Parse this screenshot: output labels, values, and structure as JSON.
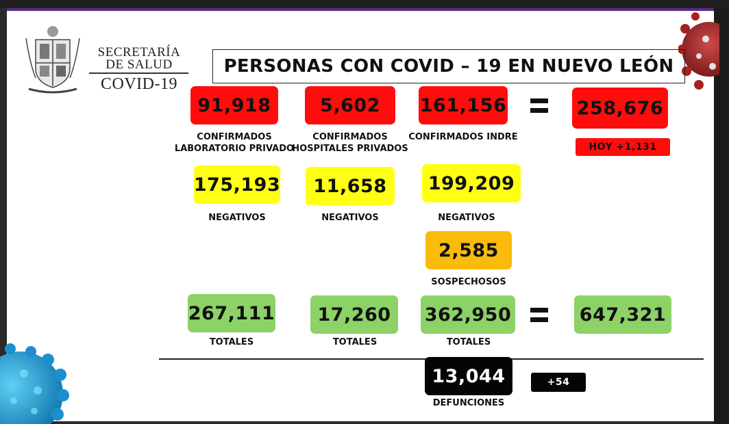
{
  "header": {
    "logo_line1": "SECRETARÍA",
    "logo_line2": "DE SALUD",
    "logo_line3": "COVID-19",
    "title": "PERSONAS CON COVID – 19 EN NUEVO LEÓN"
  },
  "confirmed": {
    "lab_privado": {
      "value": "91,918",
      "label_line1": "CONFIRMADOS",
      "label_line2": "LABORATORIO PRIVADO"
    },
    "hospitales": {
      "value": "5,602",
      "label_line1": "CONFIRMADOS",
      "label_line2": "HOSPITALES PRIVADOS"
    },
    "indre": {
      "value": "161,156",
      "label": "CONFIRMADOS INDRE"
    },
    "total": {
      "value": "258,676",
      "today": "HOY +1,131"
    }
  },
  "negatives": {
    "lab_privado": {
      "value": "175,193",
      "label": "NEGATIVOS"
    },
    "hospitales": {
      "value": "11,658",
      "label": "NEGATIVOS"
    },
    "indre": {
      "value": "199,209",
      "label": "NEGATIVOS"
    }
  },
  "suspects": {
    "value": "2,585",
    "label": "SOSPECHOSOS"
  },
  "totals": {
    "lab_privado": {
      "value": "267,111",
      "label": "TOTALES"
    },
    "hospitales": {
      "value": "17,260",
      "label": "TOTALES"
    },
    "indre": {
      "value": "362,950",
      "label": "TOTALES"
    },
    "grand_total": {
      "value": "647,321"
    }
  },
  "deaths": {
    "value": "13,044",
    "label": "DEFUNCIONES",
    "today": "+54"
  },
  "colors": {
    "confirmed": "#ff0d0d",
    "negative": "#ffff14",
    "suspect": "#fbbb0b",
    "total": "#8cd267",
    "deaths": "#050505",
    "slide_border": "#5b2d86"
  },
  "icons": {
    "logo": "state-coat-of-arms-icon",
    "virus_top_right": "virus-red-icon",
    "virus_bottom_left": "virus-blue-icon"
  }
}
